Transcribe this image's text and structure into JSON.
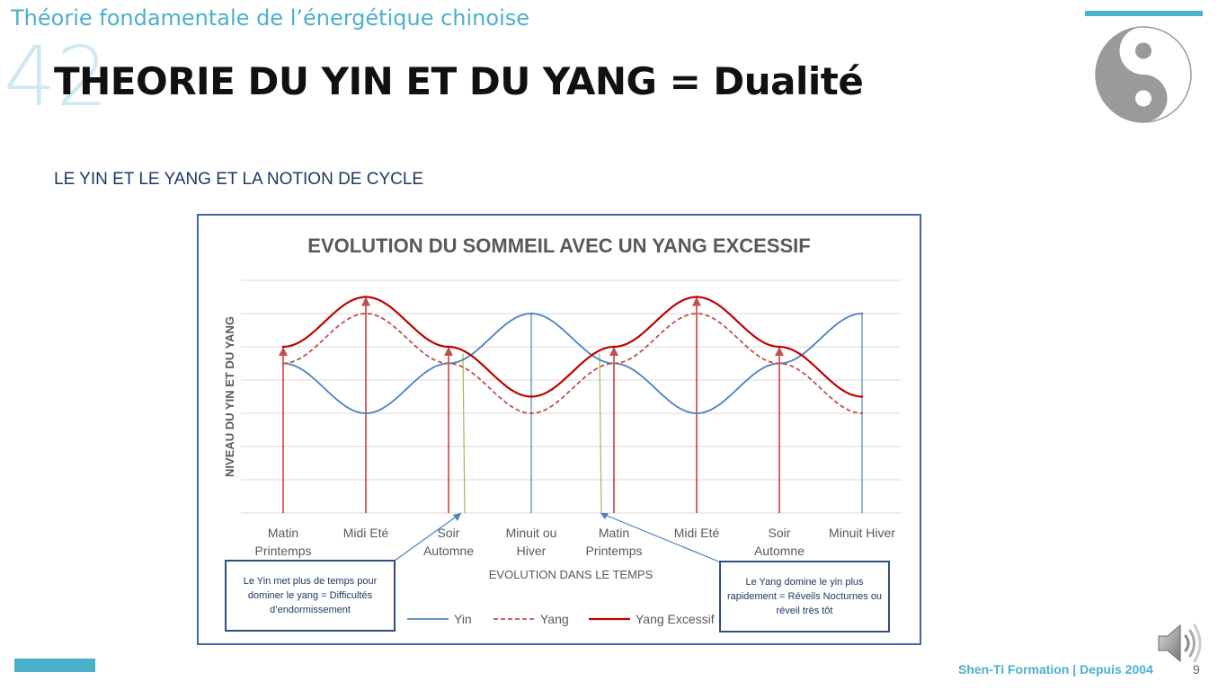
{
  "header": {
    "course_title": "Théorie fondamentale de l’énergétique chinoise",
    "slide_number_large": "42",
    "main_title": "THEORIE DU YIN ET DU YANG = Dualité"
  },
  "section": {
    "subtitle": "LE YIN ET LE YANG ET LA NOTION DE CYCLE"
  },
  "chart_data": {
    "type": "line",
    "title": "EVOLUTION DU SOMMEIL AVEC UN YANG EXCESSIF",
    "xlabel": "EVOLUTION DANS LE TEMPS",
    "ylabel": "NIVEAU DU YIN ET DU YANG",
    "categories": [
      [
        "Matin",
        "Printemps"
      ],
      [
        "Midi Eté"
      ],
      [
        "Soir",
        "Automne"
      ],
      [
        "Minuit ou",
        "Hiver"
      ],
      [
        "Matin",
        "Printemps"
      ],
      [
        "Midi Eté"
      ],
      [
        "Soir",
        "Automne"
      ],
      [
        "Minuit Hiver"
      ]
    ],
    "ylim": [
      0,
      7
    ],
    "grid": true,
    "legend_position": "bottom",
    "series": [
      {
        "name": "Yin",
        "color": "#4f81bd",
        "style": "solid",
        "values": [
          4.5,
          3,
          4.5,
          6,
          4.5,
          3,
          4.5,
          6
        ]
      },
      {
        "name": "Yang",
        "color": "#c0504d",
        "style": "dashed",
        "values": [
          4.5,
          6,
          4.5,
          3,
          4.5,
          6,
          4.5,
          3
        ]
      },
      {
        "name": "Yang Excessif",
        "color": "#c00000",
        "style": "solid",
        "values": [
          5,
          6.5,
          5,
          3.5,
          5,
          6.5,
          5,
          3.5
        ]
      }
    ]
  },
  "callouts": {
    "left": "Le Yin met plus de temps pour dominer le yang = Difficultés d’endormissement",
    "right": "Le Yang domine le yin plus rapidement = Réveils Nocturnes ou réveil très tôt"
  },
  "footer": {
    "brand": "Shen-Ti Formation | Depuis 2004",
    "page_number": "9"
  },
  "icons": {
    "logo": "yin-yang-icon",
    "audio": "speaker-icon"
  },
  "colors": {
    "accent": "#4ab0cc",
    "title": "#111111",
    "subtitle": "#1f3864",
    "chart_border": "#3d6aa8"
  }
}
